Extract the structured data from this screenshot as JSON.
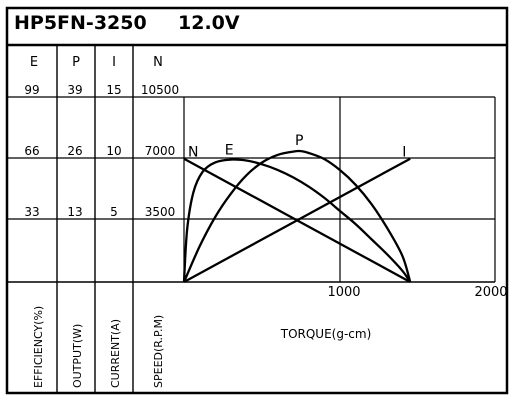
{
  "chart_data": {
    "type": "line",
    "title": "HP5FN-3250",
    "voltage": "12.0V",
    "xlabel": "TORQUE(g-cm)",
    "xlim": [
      0,
      2000
    ],
    "x_ticks": [
      "1000",
      "2000"
    ],
    "left_axes": [
      {
        "header": "E",
        "label": "EFFICIENCY(%)",
        "ticks": [
          "99",
          "66",
          "33"
        ]
      },
      {
        "header": "P",
        "label": "OUTPUT(W)",
        "ticks": [
          "39",
          "26",
          "13"
        ]
      },
      {
        "header": "I",
        "label": "CURRENT(A)",
        "ticks": [
          "15",
          "10",
          "5"
        ]
      },
      {
        "header": "N",
        "label": "SPEED(R.P.M)",
        "ticks": [
          "10500",
          "7000",
          "3500"
        ]
      }
    ],
    "series": [
      {
        "name": "N",
        "axis": "N",
        "x": [
          0,
          1450
        ],
        "y": [
          7000,
          0
        ]
      },
      {
        "name": "E",
        "axis": "E",
        "x": [
          0,
          20,
          60,
          120,
          200,
          300,
          400,
          500,
          600,
          700,
          800,
          900,
          1000,
          1100,
          1200,
          1300,
          1400,
          1450
        ],
        "y": [
          0,
          28,
          48,
          59,
          64,
          65.5,
          65,
          63,
          60,
          56,
          51,
          45,
          38,
          31,
          23,
          15,
          6,
          0
        ]
      },
      {
        "name": "P",
        "axis": "P",
        "x": [
          0,
          100,
          200,
          300,
          400,
          500,
          600,
          700,
          750,
          800,
          900,
          1000,
          1100,
          1200,
          1300,
          1400,
          1450
        ],
        "y": [
          0,
          7.5,
          13.7,
          18.6,
          22.5,
          25.2,
          26.8,
          27.5,
          27.6,
          27.2,
          25.9,
          23.6,
          20.5,
          16.5,
          11.5,
          5.5,
          0
        ]
      },
      {
        "name": "I",
        "axis": "I",
        "x": [
          0,
          1450
        ],
        "y": [
          0,
          10
        ]
      }
    ]
  }
}
